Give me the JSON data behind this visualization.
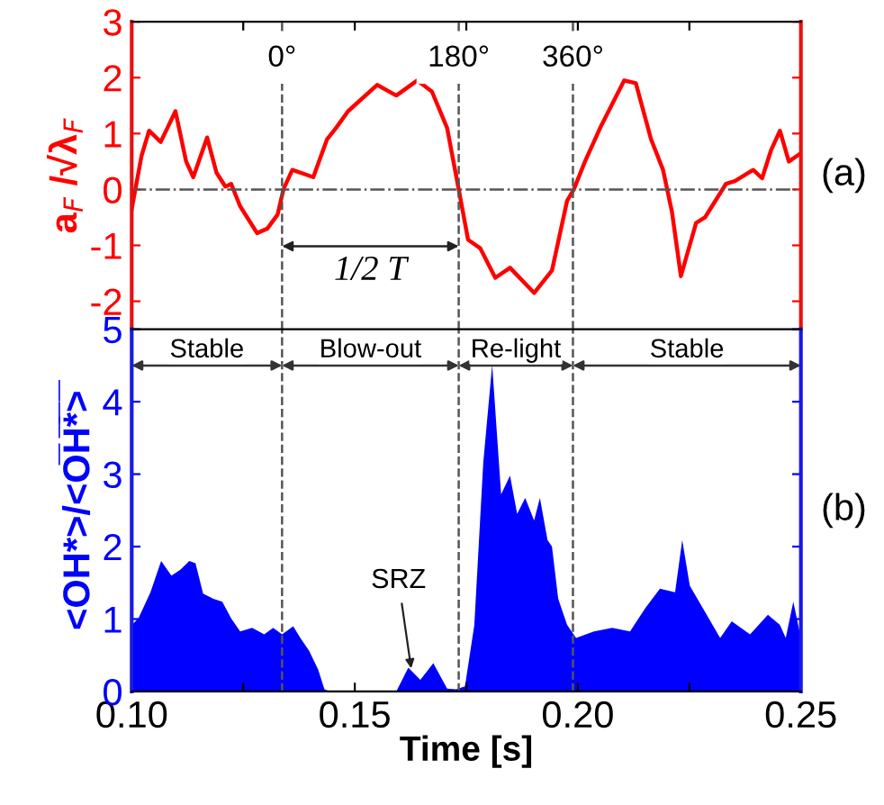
{
  "chart_data": [
    {
      "type": "line",
      "ylabel": "a$_{F}$ /√λ$_{F}$",
      "xlim": [
        0.1,
        0.25
      ],
      "xticks": [
        {
          "value": 0.1,
          "label": null
        },
        {
          "value": 0.125,
          "label": null
        },
        {
          "value": 0.15,
          "label": null
        },
        {
          "value": 0.175,
          "label": null
        },
        {
          "value": 0.2,
          "label": null
        },
        {
          "value": 0.225,
          "label": null
        },
        {
          "value": 0.25,
          "label": null
        }
      ],
      "ylim": [
        -2.5,
        3
      ],
      "yticks": [
        -2,
        -1,
        0,
        1,
        2,
        3
      ],
      "tick_labels": "y",
      "grid": false,
      "series": [
        {
          "color": "#ff0000",
          "x": [
            0.1,
            0.1022,
            0.1039,
            0.1065,
            0.1098,
            0.1122,
            0.1138,
            0.1169,
            0.119,
            0.121,
            0.1223,
            0.1243,
            0.1281,
            0.1304,
            0.1327,
            0.134,
            0.136,
            0.1407,
            0.1438,
            0.1458,
            0.1485,
            0.155,
            0.1593,
            0.164,
            0.1673,
            0.1707,
            0.1733,
            0.1754,
            0.1781,
            0.1815,
            0.1848,
            0.1902,
            0.1942,
            0.1976,
            0.1991,
            0.2016,
            0.205,
            0.2104,
            0.213,
            0.2164,
            0.2191,
            0.2211,
            0.2231,
            0.2265,
            0.2285,
            0.2332,
            0.2352,
            0.2393,
            0.2413,
            0.2433,
            0.2453,
            0.2473,
            0.25
          ],
          "values": [
            -0.35,
            0.6,
            1.05,
            0.85,
            1.4,
            0.5,
            0.22,
            0.93,
            0.3,
            0.05,
            0.1,
            -0.3,
            -0.78,
            -0.7,
            -0.45,
            0.0,
            0.35,
            0.22,
            0.9,
            1.1,
            1.4,
            1.87,
            1.68,
            1.95,
            1.75,
            1.1,
            0.0,
            -0.9,
            -1.05,
            -1.58,
            -1.4,
            -1.85,
            -1.45,
            -0.2,
            0.0,
            0.5,
            1.1,
            1.95,
            1.9,
            0.9,
            0.35,
            -0.4,
            -1.55,
            -0.6,
            -0.5,
            0.1,
            0.15,
            0.35,
            0.2,
            0.7,
            1.05,
            0.5,
            0.65
          ]
        }
      ],
      "ref_lines": [
        {
          "axis": "y",
          "value": 0,
          "line_style": "dashdot",
          "color": "#555555"
        },
        {
          "axis": "x",
          "value": 0.1337,
          "line_style": "dashed",
          "color": "#555555"
        },
        {
          "axis": "x",
          "value": 0.1733,
          "line_style": "dashed",
          "color": "#555555"
        },
        {
          "axis": "x",
          "value": 0.1989,
          "line_style": "dashed",
          "color": "#555555"
        }
      ],
      "annotations": [
        "0°",
        "180°",
        "360°",
        "1/2 T",
        "(a)"
      ]
    },
    {
      "type": "area",
      "xlabel": "Time [s]",
      "ylabel": "<OH*>/<O̅H̅*̅>̅",
      "xlim": [
        0.1,
        0.25
      ],
      "xticks": [
        {
          "value": 0.1,
          "label": "0.10"
        },
        {
          "value": 0.125,
          "label": null
        },
        {
          "value": 0.15,
          "label": "0.15"
        },
        {
          "value": 0.175,
          "label": null
        },
        {
          "value": 0.2,
          "label": "0.20"
        },
        {
          "value": 0.225,
          "label": null
        },
        {
          "value": 0.25,
          "label": "0.25"
        }
      ],
      "ylim": [
        0,
        5
      ],
      "yticks": [
        0,
        1,
        2,
        3,
        4,
        5
      ],
      "grid": false,
      "series": [
        {
          "color": "#0000ff",
          "x": [
            0.1,
            0.1015,
            0.1042,
            0.1066,
            0.1089,
            0.1109,
            0.1129,
            0.1143,
            0.116,
            0.1183,
            0.1203,
            0.1223,
            0.1243,
            0.127,
            0.1297,
            0.1317,
            0.1337,
            0.1362,
            0.1378,
            0.1398,
            0.1418,
            0.1432,
            0.1445,
            0.1593,
            0.162,
            0.1647,
            0.1676,
            0.1707,
            0.1727,
            0.1747,
            0.1768,
            0.1788,
            0.1808,
            0.1828,
            0.1848,
            0.1864,
            0.1882,
            0.1902,
            0.1915,
            0.1932,
            0.1942,
            0.1956,
            0.1976,
            0.1996,
            0.2036,
            0.2077,
            0.2117,
            0.2151,
            0.2184,
            0.2218,
            0.2234,
            0.2251,
            0.2285,
            0.2319,
            0.2345,
            0.2386,
            0.2426,
            0.2453,
            0.2466,
            0.2483,
            0.25
          ],
          "values": [
            0.92,
            1.01,
            1.37,
            1.8,
            1.6,
            1.68,
            1.8,
            1.77,
            1.35,
            1.28,
            1.24,
            1.01,
            0.83,
            0.88,
            0.79,
            0.88,
            0.79,
            0.9,
            0.74,
            0.56,
            0.3,
            0.03,
            0,
            0,
            0.33,
            0.16,
            0.39,
            0.04,
            0.03,
            0.07,
            0.92,
            3.16,
            4.51,
            2.72,
            2.98,
            2.45,
            2.67,
            2.36,
            2.67,
            2.09,
            2.0,
            1.28,
            0.92,
            0.74,
            0.83,
            0.88,
            0.83,
            1.15,
            1.42,
            1.37,
            2.09,
            1.46,
            1.1,
            0.74,
            0.97,
            0.79,
            1.06,
            0.92,
            0.74,
            1.24,
            0.74
          ]
        }
      ],
      "ref_lines": [
        {
          "axis": "x",
          "value": 0.1337,
          "line_style": "dashed",
          "color": "#555555"
        },
        {
          "axis": "x",
          "value": 0.1733,
          "line_style": "dashed",
          "color": "#555555"
        },
        {
          "axis": "x",
          "value": 0.1989,
          "line_style": "dashed",
          "color": "#555555"
        }
      ],
      "annotations": [
        "Stable",
        "Blow-out",
        "Re-light",
        "Stable",
        {
          "text": "SRZ",
          "x": 0.1628,
          "y": 0.25
        },
        "(b)"
      ]
    }
  ]
}
